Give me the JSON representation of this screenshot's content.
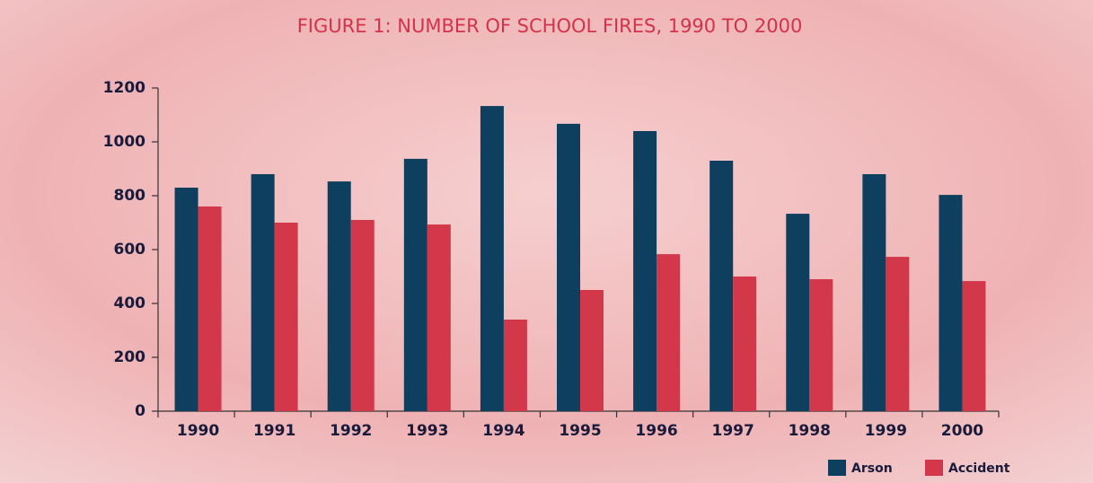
{
  "chart_data": {
    "type": "bar",
    "title": "FIGURE 1: NUMBER OF SCHOOL FIRES, 1990 TO 2000",
    "categories": [
      "1990",
      "1991",
      "1992",
      "1993",
      "1994",
      "1995",
      "1996",
      "1997",
      "1998",
      "1999",
      "2000"
    ],
    "series": [
      {
        "name": "Arson",
        "color": "#0e3f5e",
        "values": [
          830,
          880,
          853,
          937,
          1133,
          1067,
          1040,
          930,
          733,
          880,
          803
        ]
      },
      {
        "name": "Accident",
        "color": "#d2374a",
        "values": [
          760,
          700,
          710,
          693,
          340,
          450,
          583,
          500,
          490,
          573,
          483
        ]
      }
    ],
    "ylim": [
      0,
      1200
    ],
    "yticks": [
      0,
      200,
      400,
      600,
      800,
      1000,
      1200
    ],
    "legend": "bottom-right"
  }
}
